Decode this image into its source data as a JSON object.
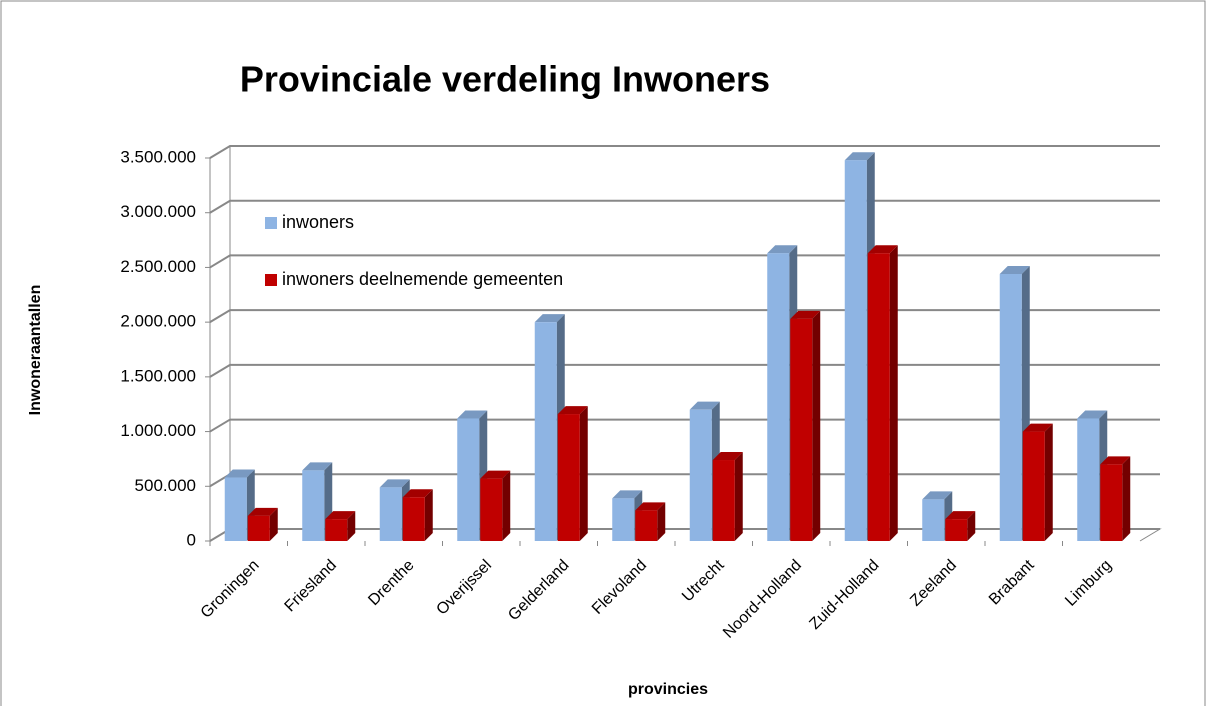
{
  "chart_data": {
    "type": "bar3d",
    "title": "Provinciale verdeling Inwoners",
    "x_label": "provincies",
    "y_label": "Inwoneraantallen",
    "categories": [
      "Groningen",
      "Friesland",
      "Drenthe",
      "Overijssel",
      "Gelderland",
      "Flevoland",
      "Utrecht",
      "Noord-Holland",
      "Zuid-Holland",
      "Zeeland",
      "Brabant",
      "Limburg"
    ],
    "series": [
      {
        "name": "inwoners",
        "color": "#8eb4e3",
        "values": [
          580000,
          645000,
          490000,
          1120000,
          2000000,
          390000,
          1200000,
          2630000,
          3480000,
          380000,
          2440000,
          1120000
        ]
      },
      {
        "name": "inwoners deelnemende gemeenten",
        "color": "#c00000",
        "values": [
          230000,
          200000,
          400000,
          570000,
          1160000,
          280000,
          740000,
          2030000,
          2630000,
          200000,
          1000000,
          700000
        ]
      }
    ],
    "ylim": [
      0,
      3500000
    ],
    "yticks": [
      0,
      {
        "value": 500000,
        "label": "500.000"
      },
      {
        "value": 1000000,
        "label": "1.000.000"
      },
      {
        "value": 1500000,
        "label": "1.500.000"
      },
      {
        "value": 2000000,
        "label": "2.000.000"
      },
      {
        "value": 2500000,
        "label": "2.500.000"
      },
      {
        "value": 3000000,
        "label": "3.000.000"
      },
      {
        "value": 3500000,
        "label": "3.500.000"
      }
    ],
    "grid": true,
    "legend": "upper left"
  }
}
